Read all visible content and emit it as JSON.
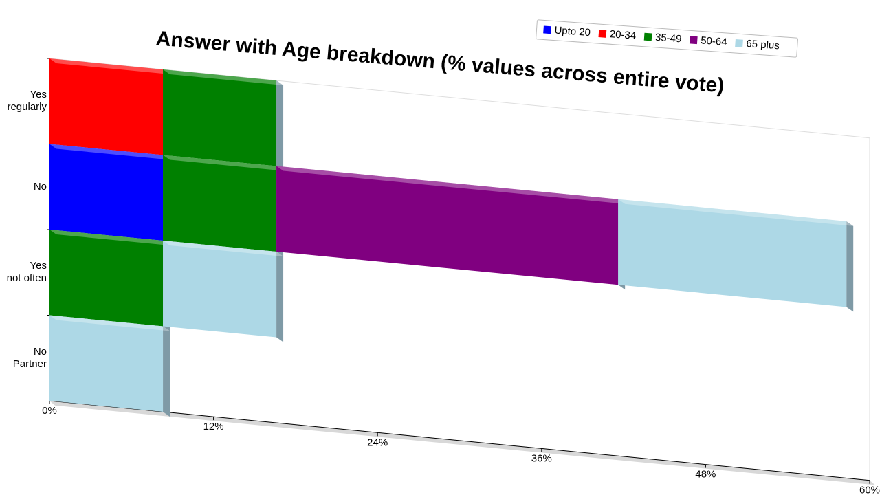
{
  "chart_data": {
    "type": "stacked-bar-3d",
    "orientation": "horizontal",
    "title": "Answer with Age breakdown (% values across entire vote)",
    "categories": [
      "Yes\nregularly",
      "No",
      "Yes\nnot often",
      "No\nPartner"
    ],
    "series": [
      {
        "name": "Upto 20",
        "color": "#0000ff",
        "values": [
          0,
          8.3,
          0,
          0
        ]
      },
      {
        "name": "20-34",
        "color": "#ff0000",
        "values": [
          8.3,
          0,
          0,
          0
        ]
      },
      {
        "name": "35-49",
        "color": "#008000",
        "values": [
          8.3,
          8.3,
          8.3,
          0
        ]
      },
      {
        "name": "50-64",
        "color": "#800080",
        "values": [
          0,
          25,
          0,
          0
        ]
      },
      {
        "name": "65 plus",
        "color": "#add8e6",
        "values": [
          0,
          16.7,
          8.3,
          8.3
        ]
      }
    ],
    "xlim": [
      0,
      60
    ],
    "xticks": [
      {
        "value": 0,
        "label": "0%"
      },
      {
        "value": 12,
        "label": "12%"
      },
      {
        "value": 24,
        "label": "24%"
      },
      {
        "value": 36,
        "label": "36%"
      },
      {
        "value": 48,
        "label": "48%"
      },
      {
        "value": 60,
        "label": "60%"
      }
    ],
    "legend": "top-right"
  }
}
